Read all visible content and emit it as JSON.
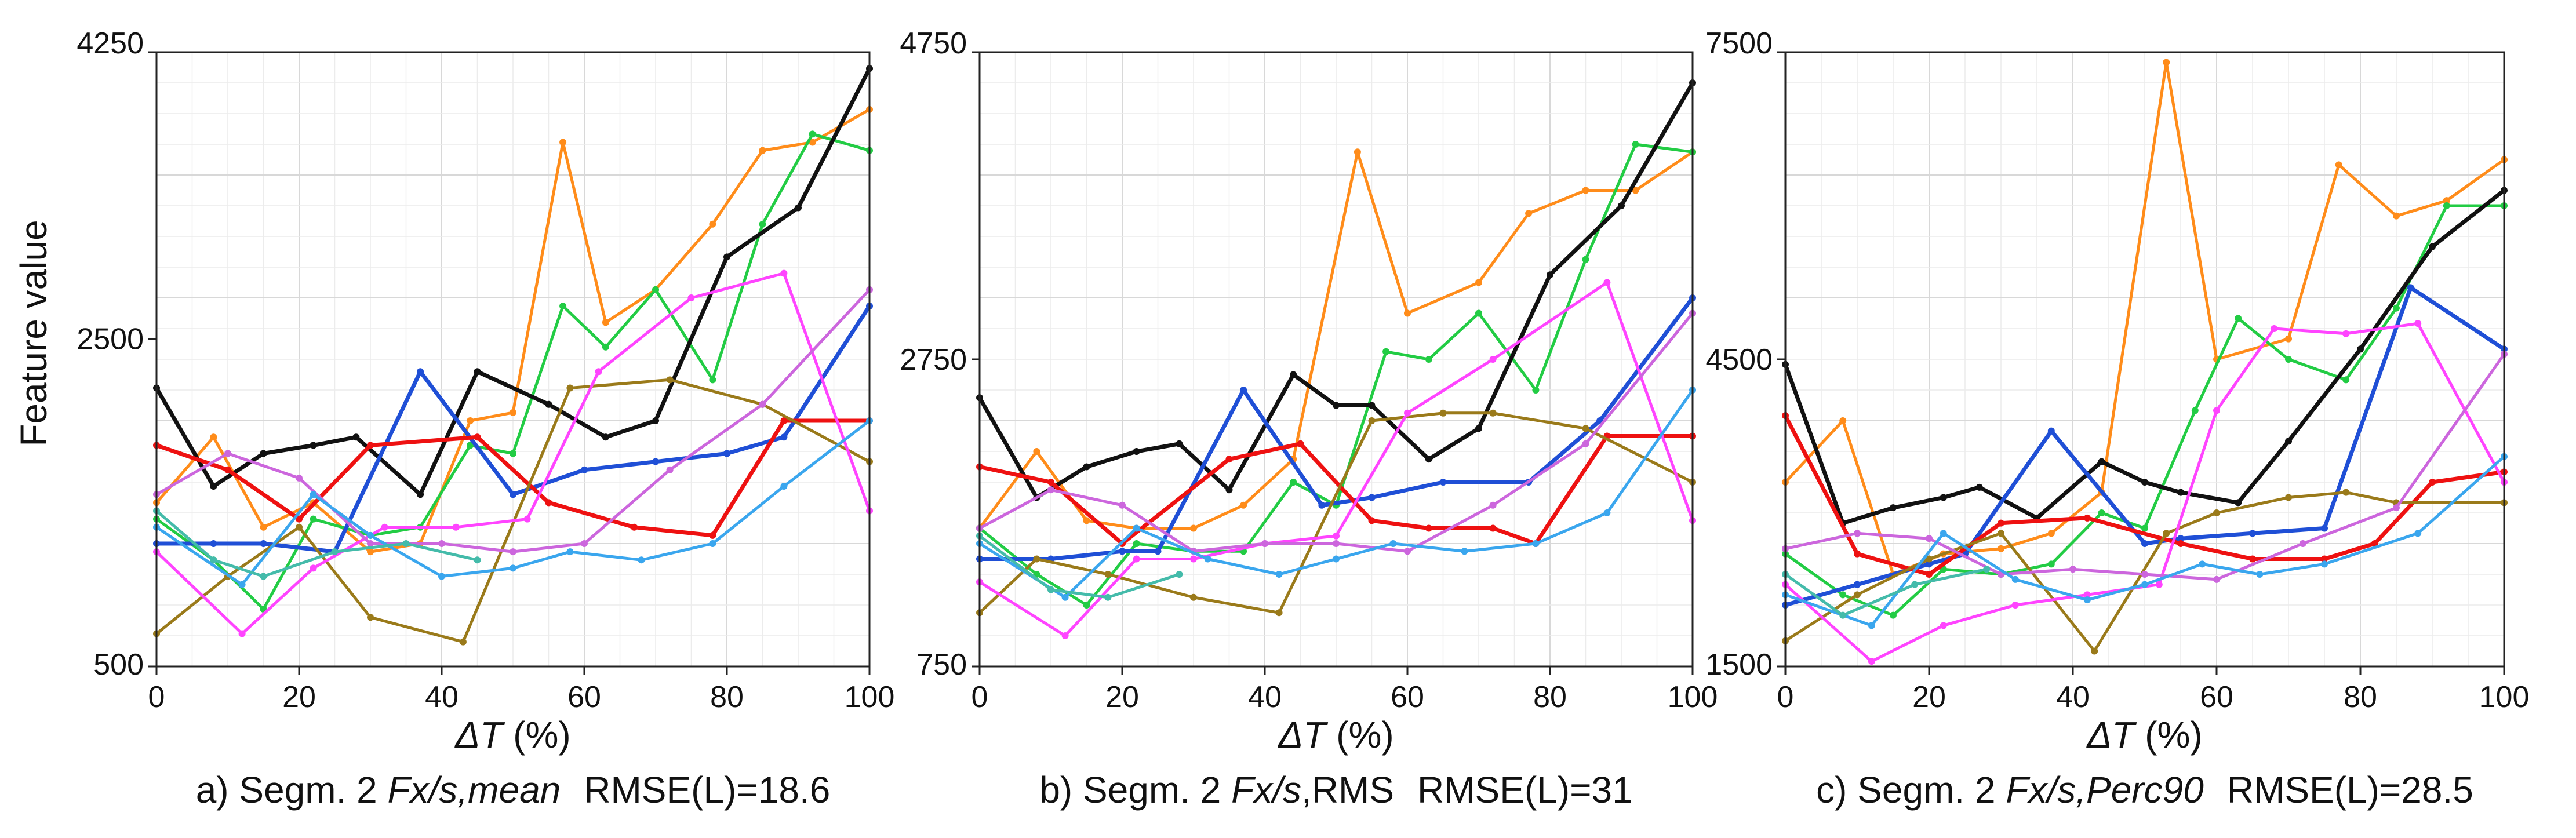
{
  "shared": {
    "ylabel": "Feature value"
  },
  "chart_data": [
    {
      "type": "line",
      "xlabel_symbol": "ΔT",
      "xlabel_unit": " (%)",
      "ylabel": "Feature value",
      "x_ticks": [
        "0",
        "20",
        "40",
        "60",
        "80",
        "100"
      ],
      "y_ticks": [
        "500",
        "2500",
        "4250"
      ],
      "xlim": [
        0,
        100
      ],
      "ylim": [
        500,
        4250
      ],
      "caption_prefix": "a) Segm. 2 ",
      "caption_feature": "Fx/s,mean",
      "caption_rmse": "RMSE(L)=18.6",
      "series": [
        {
          "name": "orange",
          "color": "#ff8c1a",
          "x": [
            0,
            8,
            15,
            22,
            30,
            37,
            44,
            50,
            57,
            63,
            70,
            78,
            85,
            92,
            100
          ],
          "y": [
            1500,
            1900,
            1350,
            1500,
            1200,
            1250,
            2000,
            2050,
            3700,
            2600,
            2800,
            3200,
            3650,
            3700,
            3900
          ]
        },
        {
          "name": "green",
          "color": "#22cc44",
          "x": [
            0,
            8,
            15,
            22,
            30,
            37,
            44,
            50,
            57,
            63,
            70,
            78,
            85,
            92,
            100
          ],
          "y": [
            1400,
            1150,
            850,
            1400,
            1300,
            1350,
            1850,
            1800,
            2700,
            2450,
            2800,
            2250,
            3200,
            3750,
            3650
          ]
        },
        {
          "name": "black",
          "color": "#111111",
          "x": [
            0,
            8,
            15,
            22,
            28,
            37,
            45,
            55,
            63,
            70,
            80,
            90,
            100
          ],
          "y": [
            2200,
            1600,
            1800,
            1850,
            1900,
            1550,
            2300,
            2100,
            1900,
            2000,
            3000,
            3300,
            4150
          ]
        },
        {
          "name": "blue",
          "color": "#1f4fd6",
          "x": [
            0,
            8,
            15,
            25,
            37,
            50,
            60,
            70,
            80,
            88,
            100
          ],
          "y": [
            1250,
            1250,
            1250,
            1200,
            2300,
            1550,
            1700,
            1750,
            1800,
            1900,
            2700
          ]
        },
        {
          "name": "red",
          "color": "#ee1111",
          "x": [
            0,
            10,
            20,
            30,
            45,
            55,
            67,
            78,
            88,
            100
          ],
          "y": [
            1850,
            1700,
            1400,
            1850,
            1900,
            1500,
            1350,
            1300,
            2000,
            2000
          ]
        },
        {
          "name": "brown",
          "color": "#9a7a1a",
          "x": [
            0,
            10,
            20,
            30,
            43,
            58,
            72,
            85,
            100
          ],
          "y": [
            700,
            1050,
            1350,
            800,
            650,
            2200,
            2250,
            2100,
            1750
          ]
        },
        {
          "name": "magenta",
          "color": "#ff44ff",
          "x": [
            0,
            12,
            22,
            32,
            42,
            52,
            62,
            75,
            88,
            100
          ],
          "y": [
            1200,
            700,
            1100,
            1350,
            1350,
            1400,
            2300,
            2750,
            2900,
            1450
          ]
        },
        {
          "name": "violet",
          "color": "#cc66dd",
          "x": [
            0,
            10,
            20,
            30,
            40,
            50,
            60,
            72,
            85,
            100
          ],
          "y": [
            1550,
            1800,
            1650,
            1250,
            1250,
            1200,
            1250,
            1700,
            2100,
            2800
          ]
        },
        {
          "name": "lightblue",
          "color": "#3aa6ee",
          "x": [
            0,
            12,
            22,
            30,
            40,
            50,
            58,
            68,
            78,
            88,
            100
          ],
          "y": [
            1350,
            1000,
            1550,
            1300,
            1050,
            1100,
            1200,
            1150,
            1250,
            1600,
            2000
          ]
        },
        {
          "name": "teal",
          "color": "#44bbaa",
          "x": [
            0,
            8,
            15,
            25,
            35,
            45
          ],
          "y": [
            1450,
            1150,
            1050,
            1200,
            1250,
            1150
          ]
        }
      ]
    },
    {
      "type": "line",
      "xlabel_symbol": "ΔT",
      "xlabel_unit": " (%)",
      "ylabel": "",
      "x_ticks": [
        "0",
        "20",
        "40",
        "60",
        "80",
        "100"
      ],
      "y_ticks": [
        "750",
        "2750",
        "4750"
      ],
      "xlim": [
        0,
        100
      ],
      "ylim": [
        750,
        4750
      ],
      "caption_prefix": "b) Segm. 2 ",
      "caption_feature": "Fx/s",
      "caption_suffix": ",RMS",
      "caption_rmse": "RMSE(L)=31",
      "series": [
        {
          "name": "orange",
          "color": "#ff8c1a",
          "x": [
            0,
            8,
            15,
            22,
            30,
            37,
            44,
            53,
            60,
            70,
            77,
            85,
            92,
            100
          ],
          "y": [
            1650,
            2150,
            1700,
            1650,
            1650,
            1800,
            2100,
            4100,
            3050,
            3250,
            3700,
            3850,
            3850,
            4100
          ]
        },
        {
          "name": "green",
          "color": "#22cc44",
          "x": [
            0,
            8,
            15,
            22,
            30,
            37,
            44,
            50,
            57,
            63,
            70,
            78,
            85,
            92,
            100
          ],
          "y": [
            1650,
            1350,
            1150,
            1550,
            1500,
            1500,
            1950,
            1800,
            2800,
            2750,
            3050,
            2550,
            3400,
            4150,
            4100
          ]
        },
        {
          "name": "black",
          "color": "#111111",
          "x": [
            0,
            8,
            15,
            22,
            28,
            35,
            44,
            50,
            55,
            63,
            70,
            80,
            90,
            100
          ],
          "y": [
            2500,
            1850,
            2050,
            2150,
            2200,
            1900,
            2650,
            2450,
            2450,
            2100,
            2300,
            3300,
            3750,
            4550
          ]
        },
        {
          "name": "blue",
          "color": "#1f4fd6",
          "x": [
            0,
            10,
            20,
            25,
            37,
            48,
            55,
            65,
            77,
            87,
            100
          ],
          "y": [
            1450,
            1450,
            1500,
            1500,
            2550,
            1800,
            1850,
            1950,
            1950,
            2350,
            3150
          ]
        },
        {
          "name": "red",
          "color": "#ee1111",
          "x": [
            0,
            10,
            20,
            35,
            45,
            55,
            63,
            72,
            78,
            88,
            100
          ],
          "y": [
            2050,
            1950,
            1550,
            2100,
            2200,
            1700,
            1650,
            1650,
            1550,
            2250,
            2250
          ]
        },
        {
          "name": "brown",
          "color": "#9a7a1a",
          "x": [
            0,
            8,
            18,
            30,
            42,
            55,
            65,
            72,
            85,
            100
          ],
          "y": [
            1100,
            1450,
            1350,
            1200,
            1100,
            2350,
            2400,
            2400,
            2300,
            1950
          ]
        },
        {
          "name": "magenta",
          "color": "#ff44ff",
          "x": [
            0,
            12,
            22,
            30,
            40,
            50,
            60,
            72,
            88,
            100
          ],
          "y": [
            1300,
            950,
            1450,
            1450,
            1550,
            1600,
            2400,
            2750,
            3250,
            1700
          ]
        },
        {
          "name": "violet",
          "color": "#cc66dd",
          "x": [
            0,
            10,
            20,
            30,
            40,
            50,
            60,
            72,
            85,
            100
          ],
          "y": [
            1650,
            1900,
            1800,
            1500,
            1550,
            1550,
            1500,
            1800,
            2200,
            3050
          ]
        },
        {
          "name": "lightblue",
          "color": "#3aa6ee",
          "x": [
            0,
            12,
            22,
            32,
            42,
            50,
            58,
            68,
            78,
            88,
            100
          ],
          "y": [
            1550,
            1200,
            1650,
            1450,
            1350,
            1450,
            1550,
            1500,
            1550,
            1750,
            2550
          ]
        },
        {
          "name": "teal",
          "color": "#44bbaa",
          "x": [
            0,
            10,
            18,
            28
          ],
          "y": [
            1600,
            1250,
            1200,
            1350
          ]
        }
      ]
    },
    {
      "type": "line",
      "xlabel_symbol": "ΔT",
      "xlabel_unit": " (%)",
      "ylabel": "",
      "x_ticks": [
        "0",
        "20",
        "40",
        "60",
        "80",
        "100"
      ],
      "y_ticks": [
        "1500",
        "4500",
        "7500"
      ],
      "xlim": [
        0,
        100
      ],
      "ylim": [
        1500,
        7500
      ],
      "caption_prefix": "c) Segm. 2 ",
      "caption_feature": "Fx/s,Perc90",
      "caption_rmse": "RMSE(L)=28.5",
      "series": [
        {
          "name": "orange",
          "color": "#ff8c1a",
          "x": [
            0,
            8,
            15,
            22,
            30,
            37,
            44,
            53,
            60,
            70,
            77,
            85,
            92,
            100
          ],
          "y": [
            3300,
            3900,
            2400,
            2600,
            2650,
            2800,
            3200,
            7400,
            4500,
            4700,
            6400,
            5900,
            6050,
            6450
          ]
        },
        {
          "name": "green",
          "color": "#22cc44",
          "x": [
            0,
            8,
            15,
            22,
            30,
            37,
            44,
            50,
            57,
            63,
            70,
            78,
            85,
            92,
            100
          ],
          "y": [
            2600,
            2200,
            2000,
            2450,
            2400,
            2500,
            3000,
            2850,
            4000,
            4900,
            4500,
            4300,
            5000,
            6000,
            6000
          ]
        },
        {
          "name": "black",
          "color": "#111111",
          "x": [
            0,
            8,
            15,
            22,
            27,
            35,
            44,
            50,
            55,
            63,
            70,
            80,
            90,
            100
          ],
          "y": [
            4450,
            2900,
            3050,
            3150,
            3250,
            2950,
            3500,
            3300,
            3200,
            3100,
            3700,
            4600,
            5600,
            6150
          ]
        },
        {
          "name": "blue",
          "color": "#1f4fd6",
          "x": [
            0,
            10,
            20,
            25,
            37,
            50,
            55,
            65,
            75,
            87,
            100
          ],
          "y": [
            2100,
            2300,
            2500,
            2600,
            3800,
            2700,
            2750,
            2800,
            2850,
            5200,
            4600
          ]
        },
        {
          "name": "red",
          "color": "#ee1111",
          "x": [
            0,
            10,
            20,
            30,
            42,
            55,
            65,
            75,
            82,
            90,
            100
          ],
          "y": [
            3950,
            2600,
            2400,
            2900,
            2950,
            2700,
            2550,
            2550,
            2700,
            3300,
            3400
          ]
        },
        {
          "name": "brown",
          "color": "#9a7a1a",
          "x": [
            0,
            10,
            20,
            30,
            43,
            53,
            60,
            70,
            78,
            85,
            100
          ],
          "y": [
            1750,
            2200,
            2550,
            2800,
            1650,
            2800,
            3000,
            3150,
            3200,
            3100,
            3100
          ]
        },
        {
          "name": "magenta",
          "color": "#ff44ff",
          "x": [
            0,
            12,
            22,
            32,
            42,
            52,
            60,
            68,
            78,
            88,
            100
          ],
          "y": [
            2300,
            1550,
            1900,
            2100,
            2200,
            2300,
            4000,
            4800,
            4750,
            4850,
            3300
          ]
        },
        {
          "name": "violet",
          "color": "#cc66dd",
          "x": [
            0,
            10,
            20,
            30,
            40,
            50,
            60,
            72,
            85,
            100
          ],
          "y": [
            2650,
            2800,
            2750,
            2400,
            2450,
            2400,
            2350,
            2700,
            3050,
            4550
          ]
        },
        {
          "name": "lightblue",
          "color": "#3aa6ee",
          "x": [
            0,
            12,
            22,
            32,
            42,
            50,
            58,
            66,
            75,
            88,
            100
          ],
          "y": [
            2200,
            1900,
            2800,
            2350,
            2150,
            2300,
            2500,
            2400,
            2500,
            2800,
            3550
          ]
        },
        {
          "name": "teal",
          "color": "#44bbaa",
          "x": [
            0,
            8,
            18,
            28
          ],
          "y": [
            2400,
            2000,
            2300,
            2450
          ]
        }
      ]
    }
  ]
}
